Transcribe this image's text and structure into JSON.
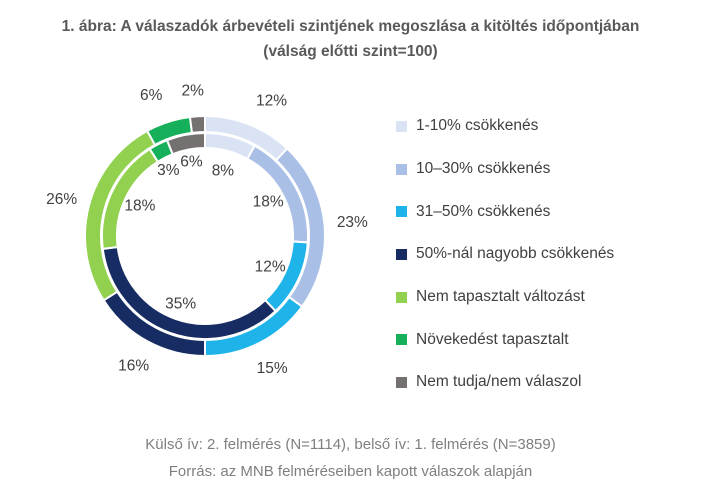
{
  "header": {
    "title_line1": "1. ábra: A válaszadók árbevételi szintjének megoszlása a kitöltés időpontjában",
    "title_line2": "(válság előtti szint=100)"
  },
  "chart_data": {
    "type": "pie",
    "variant": "double-donut",
    "categories": [
      "1-10% csökkenés",
      "10–30% csökkenés",
      "31–50% csökkenés",
      "50%-nál nagyobb csökkenés",
      "Nem tapasztalt változást",
      "Növekedést tapasztalt",
      "Nem tudja/nem válaszol"
    ],
    "colors": [
      "#dae3f3",
      "#a9bfe6",
      "#1fb4e9",
      "#162c62",
      "#92d050",
      "#17b05a",
      "#767171"
    ],
    "series": [
      {
        "ring": "outer",
        "values": [
          12,
          23,
          15,
          16,
          26,
          6,
          2
        ],
        "labels": [
          "12%",
          "23%",
          "15%",
          "16%",
          "26%",
          "6%",
          "2%"
        ]
      },
      {
        "ring": "inner",
        "values": [
          8,
          18,
          12,
          35,
          18,
          3,
          6
        ],
        "labels": [
          "8%",
          "18%",
          "12%",
          "35%",
          "18%",
          "3%",
          "6%"
        ]
      }
    ],
    "legend_position": "right"
  },
  "footer": {
    "note": "Külső ív: 2. felmérés (N=1114), belső ív: 1. felmérés (N=3859)",
    "source": "Forrás: az MNB felméréseiben kapott válaszok alapján"
  }
}
